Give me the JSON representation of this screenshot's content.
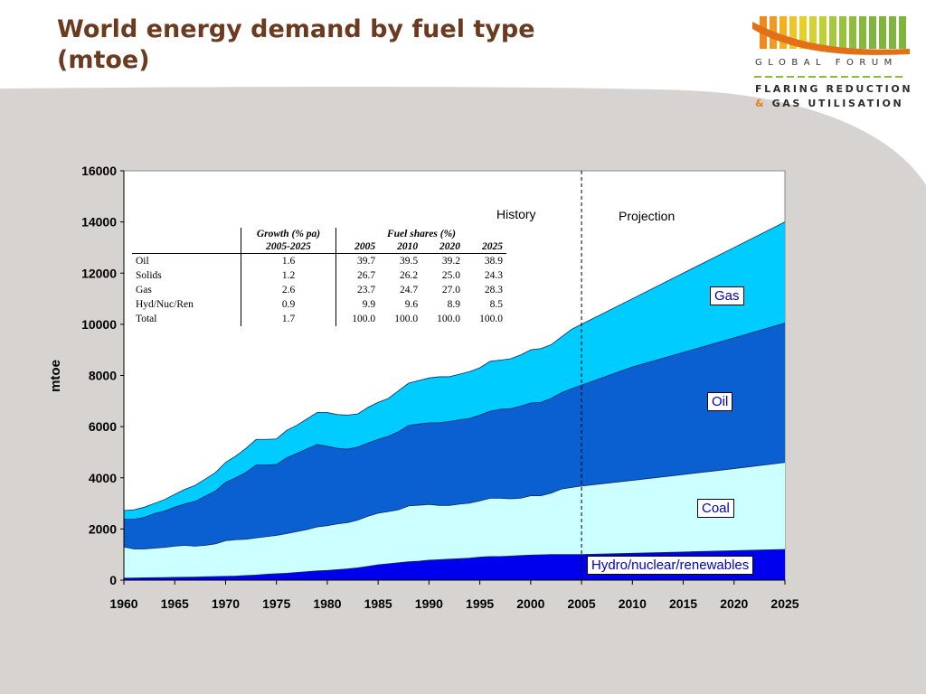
{
  "slide": {
    "title_line1": "World energy demand by fuel type",
    "title_line2": "(mtoe)"
  },
  "logo": {
    "line1": "GLOBAL FORUM",
    "line2": "FLARING REDUCTION",
    "line3_amp": "&",
    "line3_rest": "GAS UTILISATION",
    "colors": [
      "#f18a1c",
      "#f4b01f",
      "#e6cf2a",
      "#a7c83c",
      "#7fb53d"
    ]
  },
  "colors": {
    "title": "#6b3a1f",
    "band": "#d7d3d1",
    "hydro": "#0000ee",
    "coal": "#ccffff",
    "oil": "#0a5fd1",
    "gas": "#00ccff"
  },
  "chart_data": {
    "type": "area",
    "stacked": true,
    "ylabel": "mtoe",
    "xlabel": "",
    "xlim": [
      1960,
      2025
    ],
    "ylim": [
      0,
      16000
    ],
    "x_ticks": [
      "1960",
      "1965",
      "1970",
      "1975",
      "1980",
      "1985",
      "1990",
      "1995",
      "2000",
      "2005",
      "2010",
      "2015",
      "2020",
      "2025"
    ],
    "y_ticks": [
      "0",
      "2000",
      "4000",
      "6000",
      "8000",
      "10000",
      "12000",
      "14000",
      "16000"
    ],
    "divider_year": 2005,
    "annotations": [
      "History",
      "Projection"
    ],
    "series_order_bottom_to_top": [
      "Hydro/nuclear/renewables",
      "Coal",
      "Oil",
      "Gas"
    ],
    "cumulative_tops": {
      "x": [
        1960,
        1961,
        1962,
        1963,
        1964,
        1965,
        1966,
        1967,
        1968,
        1969,
        1970,
        1971,
        1972,
        1973,
        1974,
        1975,
        1976,
        1977,
        1978,
        1979,
        1980,
        1981,
        1982,
        1983,
        1984,
        1985,
        1986,
        1987,
        1988,
        1989,
        1990,
        1991,
        1992,
        1993,
        1994,
        1995,
        1996,
        1997,
        1998,
        1999,
        2000,
        2001,
        2002,
        2003,
        2004,
        2005,
        2010,
        2015,
        2020,
        2025
      ],
      "hydro": [
        80,
        85,
        90,
        95,
        100,
        110,
        115,
        120,
        130,
        140,
        150,
        160,
        180,
        200,
        230,
        250,
        270,
        300,
        330,
        360,
        380,
        410,
        440,
        480,
        540,
        600,
        640,
        680,
        720,
        740,
        780,
        800,
        820,
        840,
        860,
        900,
        920,
        920,
        940,
        960,
        980,
        990,
        1000,
        1000,
        1000,
        1000,
        1050,
        1100,
        1150,
        1200
      ],
      "coal": [
        1300,
        1220,
        1220,
        1250,
        1280,
        1330,
        1360,
        1330,
        1360,
        1420,
        1540,
        1580,
        1600,
        1650,
        1700,
        1750,
        1820,
        1900,
        1980,
        2080,
        2130,
        2200,
        2250,
        2350,
        2500,
        2620,
        2680,
        2750,
        2900,
        2930,
        2960,
        2920,
        2920,
        2970,
        3010,
        3100,
        3200,
        3200,
        3180,
        3200,
        3300,
        3300,
        3400,
        3560,
        3620,
        3680,
        3900,
        4130,
        4360,
        4600
      ],
      "oil": [
        2380,
        2380,
        2450,
        2600,
        2700,
        2850,
        2980,
        3080,
        3280,
        3480,
        3820,
        4000,
        4210,
        4500,
        4500,
        4520,
        4780,
        4950,
        5130,
        5300,
        5230,
        5150,
        5120,
        5200,
        5360,
        5500,
        5620,
        5800,
        6050,
        6100,
        6150,
        6150,
        6200,
        6270,
        6320,
        6450,
        6600,
        6680,
        6700,
        6800,
        6920,
        6950,
        7100,
        7320,
        7480,
        7620,
        8330,
        8900,
        9470,
        10050
      ],
      "gas": [
        2720,
        2750,
        2850,
        3000,
        3150,
        3350,
        3550,
        3700,
        3950,
        4200,
        4600,
        4850,
        5150,
        5500,
        5500,
        5520,
        5850,
        6050,
        6300,
        6550,
        6550,
        6470,
        6450,
        6500,
        6750,
        6950,
        7100,
        7400,
        7700,
        7800,
        7900,
        7950,
        7950,
        8050,
        8150,
        8300,
        8550,
        8600,
        8650,
        8800,
        9000,
        9050,
        9200,
        9500,
        9800,
        10000,
        11000,
        12000,
        13000,
        14000
      ]
    },
    "series": [
      {
        "name": "Hydro/nuclear/renewables",
        "color": "#0000ee"
      },
      {
        "name": "Coal",
        "color": "#ccffff"
      },
      {
        "name": "Oil",
        "color": "#0a5fd1"
      },
      {
        "name": "Gas",
        "color": "#00ccff"
      }
    ],
    "inset_table": {
      "group_header_growth": "Growth (% pa)",
      "sub_header_growth": "2005-2025",
      "group_header_shares": "Fuel shares (%)",
      "years": [
        "2005",
        "2010",
        "2020",
        "2025"
      ],
      "rows": [
        {
          "fuel": "Oil",
          "growth": "1.6",
          "shares": [
            "39.7",
            "39.5",
            "39.2",
            "38.9"
          ]
        },
        {
          "fuel": "Solids",
          "growth": "1.2",
          "shares": [
            "26.7",
            "26.2",
            "25.0",
            "24.3"
          ]
        },
        {
          "fuel": "Gas",
          "growth": "2.6",
          "shares": [
            "23.7",
            "24.7",
            "27.0",
            "28.3"
          ]
        },
        {
          "fuel": "Hyd/Nuc/Ren",
          "growth": "0.9",
          "shares": [
            "9.9",
            "9.6",
            "8.9",
            "8.5"
          ]
        },
        {
          "fuel": "Total",
          "growth": "1.7",
          "shares": [
            "100.0",
            "100.0",
            "100.0",
            "100.0"
          ]
        }
      ]
    },
    "series_labels": {
      "gas": "Gas",
      "oil": "Oil",
      "coal": "Coal",
      "hydro": "Hydro/nuclear/renewables"
    }
  }
}
